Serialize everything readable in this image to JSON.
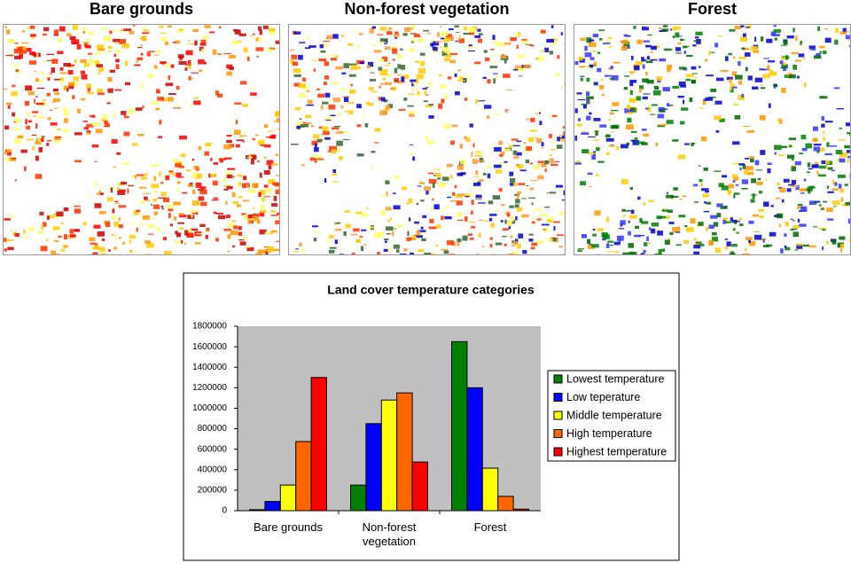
{
  "panels": [
    {
      "title": "Bare grounds"
    },
    {
      "title": "Non-forest vegetation"
    },
    {
      "title": "Forest"
    }
  ],
  "chart_data": {
    "type": "bar",
    "title": "Land cover temperature categories",
    "categories": [
      "Bare grounds",
      "Non-forest vegetation",
      "Forest"
    ],
    "series": [
      {
        "name": "Lowest temperature",
        "color": "#008000",
        "values": [
          10000,
          250000,
          1650000
        ]
      },
      {
        "name": "Low teperature",
        "color": "#0000ff",
        "values": [
          90000,
          850000,
          1200000
        ]
      },
      {
        "name": "Middle temperature",
        "color": "#ffff00",
        "values": [
          250000,
          1080000,
          415000
        ]
      },
      {
        "name": "High temperature",
        "color": "#ff6600",
        "values": [
          675000,
          1150000,
          140000
        ]
      },
      {
        "name": "Highest temperature",
        "color": "#ff0000",
        "values": [
          1300000,
          475000,
          15000
        ]
      }
    ],
    "ylim": [
      0,
      1800000
    ],
    "yticks": [
      0,
      200000,
      400000,
      600000,
      800000,
      1000000,
      1200000,
      1400000,
      1600000,
      1800000
    ],
    "grid": false,
    "legend": "right"
  }
}
